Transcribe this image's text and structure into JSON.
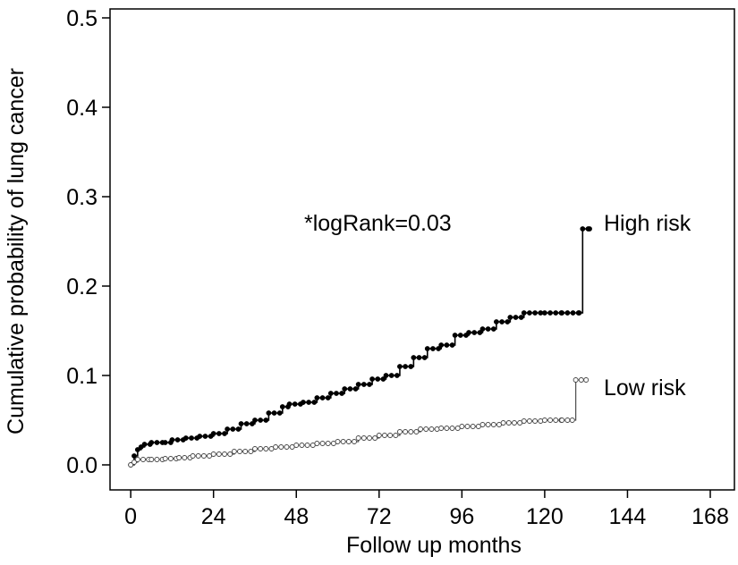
{
  "chart_data": {
    "type": "line",
    "subtype": "step",
    "xlabel": "Follow up months",
    "ylabel": "Cumulative probability of lung cancer",
    "xlim": [
      -6,
      175
    ],
    "ylim": [
      -0.028,
      0.51
    ],
    "xticks": [
      0,
      24,
      48,
      72,
      96,
      120,
      144,
      168
    ],
    "yticks": [
      0.0,
      0.1,
      0.2,
      0.3,
      0.4,
      0.5
    ],
    "ytick_labels": [
      "0.0",
      "0.1",
      "0.2",
      "0.3",
      "0.4",
      "0.5"
    ],
    "grid": false,
    "annotation": "*logRank=0.03",
    "series": [
      {
        "name": "High risk",
        "color": "#000000",
        "marker": "filled-circle",
        "points": [
          [
            0,
            0.0
          ],
          [
            1,
            0.01
          ],
          [
            2,
            0.017
          ],
          [
            3,
            0.02
          ],
          [
            4,
            0.023
          ],
          [
            6,
            0.025
          ],
          [
            10,
            0.025
          ],
          [
            12,
            0.028
          ],
          [
            16,
            0.03
          ],
          [
            20,
            0.032
          ],
          [
            24,
            0.035
          ],
          [
            28,
            0.04
          ],
          [
            32,
            0.046
          ],
          [
            36,
            0.05
          ],
          [
            40,
            0.058
          ],
          [
            44,
            0.065
          ],
          [
            46,
            0.068
          ],
          [
            50,
            0.07
          ],
          [
            54,
            0.075
          ],
          [
            58,
            0.08
          ],
          [
            62,
            0.085
          ],
          [
            66,
            0.09
          ],
          [
            70,
            0.096
          ],
          [
            74,
            0.1
          ],
          [
            78,
            0.11
          ],
          [
            82,
            0.12
          ],
          [
            86,
            0.13
          ],
          [
            90,
            0.134
          ],
          [
            94,
            0.145
          ],
          [
            98,
            0.148
          ],
          [
            102,
            0.152
          ],
          [
            106,
            0.16
          ],
          [
            110,
            0.165
          ],
          [
            114,
            0.17
          ],
          [
            120,
            0.17
          ],
          [
            125,
            0.17
          ],
          [
            130,
            0.17
          ],
          [
            131,
            0.264
          ],
          [
            133,
            0.264
          ]
        ]
      },
      {
        "name": "Low risk",
        "color": "#555555",
        "marker": "open-circle",
        "points": [
          [
            0,
            0.0
          ],
          [
            1,
            0.003
          ],
          [
            2,
            0.006
          ],
          [
            6,
            0.006
          ],
          [
            10,
            0.007
          ],
          [
            14,
            0.008
          ],
          [
            18,
            0.01
          ],
          [
            24,
            0.012
          ],
          [
            30,
            0.015
          ],
          [
            36,
            0.018
          ],
          [
            42,
            0.02
          ],
          [
            48,
            0.022
          ],
          [
            54,
            0.024
          ],
          [
            60,
            0.026
          ],
          [
            66,
            0.03
          ],
          [
            72,
            0.033
          ],
          [
            78,
            0.037
          ],
          [
            84,
            0.04
          ],
          [
            90,
            0.041
          ],
          [
            96,
            0.043
          ],
          [
            102,
            0.045
          ],
          [
            108,
            0.047
          ],
          [
            114,
            0.049
          ],
          [
            120,
            0.05
          ],
          [
            125,
            0.05
          ],
          [
            128,
            0.05
          ],
          [
            129,
            0.095
          ],
          [
            132,
            0.095
          ]
        ]
      }
    ]
  }
}
